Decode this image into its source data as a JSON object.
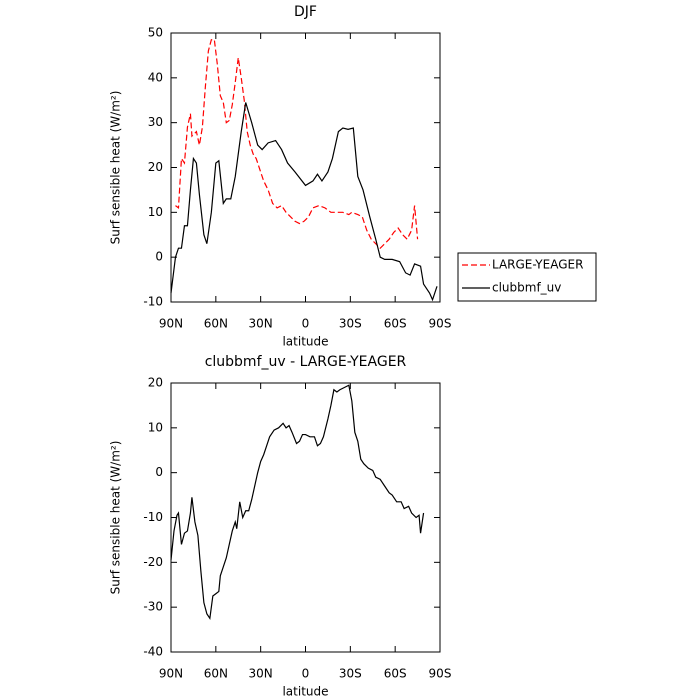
{
  "chart_data": [
    {
      "type": "line",
      "title": "DJF",
      "x_label": "latitude",
      "y_label": "Surf sensible heat (W/m²)",
      "xlim": [
        90,
        -90
      ],
      "xticks": [
        {
          "value": 90,
          "label": "90N"
        },
        {
          "value": 60,
          "label": "60N"
        },
        {
          "value": 30,
          "label": "30N"
        },
        0,
        {
          "value": -30,
          "label": "30S"
        },
        {
          "value": -60,
          "label": "60S"
        },
        {
          "value": -90,
          "label": "90S"
        }
      ],
      "ylim": [
        -10,
        50
      ],
      "yticks": [
        -10,
        0,
        10,
        20,
        30,
        40,
        50
      ],
      "legend": "right",
      "series": [
        {
          "name": "LARGE-YEAGER",
          "color": "#ff0000",
          "dash": true,
          "x": [
            87,
            85,
            83,
            81,
            79,
            77,
            76,
            73,
            71,
            69,
            67,
            65,
            63,
            61,
            59,
            57,
            55,
            53,
            51,
            49,
            47,
            45,
            43,
            41,
            39,
            37,
            35,
            33,
            31,
            28,
            25,
            22,
            19,
            16,
            13,
            10,
            7,
            4,
            1,
            -2,
            -5,
            -9,
            -13,
            -17,
            -21,
            -25,
            -29,
            -31,
            -35,
            -38,
            -41,
            -44,
            -47,
            -50,
            -53,
            -56,
            -59,
            -62,
            -65,
            -68,
            -71,
            -73,
            -75
          ],
          "values": [
            11.5,
            11,
            22,
            21,
            29,
            32,
            27,
            28,
            25,
            29,
            38,
            46,
            48.5,
            48.5,
            43,
            36,
            34.5,
            30,
            30.5,
            34,
            39,
            44.5,
            40,
            35,
            28,
            25,
            23,
            22,
            20,
            17,
            15,
            12,
            11,
            11.5,
            10,
            9,
            8,
            7.5,
            8,
            9,
            11,
            11.5,
            11,
            10,
            10,
            10,
            9.5,
            10,
            9.5,
            9,
            6,
            4,
            3,
            2,
            3,
            4,
            5.5,
            6.5,
            5,
            4,
            6,
            11.5,
            4
          ]
        },
        {
          "name": "clubbmf_uv",
          "color": "#000000",
          "dash": false,
          "x": [
            90,
            87,
            85,
            83,
            81,
            79,
            77,
            75,
            73,
            71,
            68,
            66,
            63,
            60,
            58,
            55,
            53,
            50,
            47,
            43,
            40,
            36,
            32,
            29,
            25,
            20,
            16,
            12,
            7,
            0,
            -5,
            -8,
            -11,
            -15,
            -18,
            -22,
            -25,
            -28.5,
            -32,
            -35,
            -38.5,
            -43,
            -47,
            -50,
            -53,
            -58,
            -63,
            -67,
            -70,
            -73,
            -77,
            -79,
            -83,
            -85,
            -88
          ],
          "values": [
            -8,
            0,
            2,
            2,
            7,
            7,
            15,
            22,
            21,
            14,
            5,
            3,
            10,
            21,
            21.5,
            12,
            13,
            13,
            18,
            28,
            34.5,
            30,
            25,
            24,
            25.5,
            26,
            24,
            21,
            19,
            16,
            17,
            18.5,
            17,
            19,
            22,
            28,
            28.8,
            28.5,
            28.8,
            18,
            15,
            9,
            4,
            0,
            -0.5,
            -0.5,
            -1,
            -3.5,
            -4,
            -1.5,
            -2,
            -6,
            -8,
            -9.5,
            -6.5
          ]
        }
      ]
    },
    {
      "type": "line",
      "title": "clubbmf_uv - LARGE-YEAGER",
      "x_label": "latitude",
      "y_label": "Surf sensible heat (W/m²)",
      "xlim": [
        90,
        -90
      ],
      "xticks": [
        {
          "value": 90,
          "label": "90N"
        },
        {
          "value": 60,
          "label": "60N"
        },
        {
          "value": 30,
          "label": "30N"
        },
        0,
        {
          "value": -30,
          "label": "30S"
        },
        {
          "value": -60,
          "label": "60S"
        },
        {
          "value": -90,
          "label": "90S"
        }
      ],
      "ylim": [
        -40,
        20
      ],
      "yticks": [
        -40,
        -30,
        -20,
        -10,
        0,
        10,
        20
      ],
      "series": [
        {
          "color": "#000000",
          "dash": false,
          "x": [
            90,
            88,
            86,
            85,
            83,
            81,
            79,
            77,
            76,
            74,
            72,
            70,
            68,
            66,
            64,
            62,
            60,
            58,
            57,
            55,
            53,
            51,
            49,
            47,
            46,
            44,
            42,
            40,
            38,
            36,
            34,
            32,
            30,
            28,
            26,
            24,
            21,
            18,
            15,
            13,
            11,
            9,
            6,
            4,
            2,
            0,
            -3,
            -6,
            -8,
            -10,
            -12,
            -15,
            -17,
            -19,
            -21,
            -23,
            -26,
            -29,
            -31,
            -33,
            -35,
            -37,
            -39,
            -42,
            -45,
            -47,
            -50,
            -53,
            -56,
            -58,
            -61,
            -64,
            -66,
            -69,
            -71,
            -74,
            -76,
            -77,
            -79
          ],
          "values": [
            -19.5,
            -13,
            -9.5,
            -9,
            -16,
            -13.5,
            -13,
            -9,
            -5.5,
            -11,
            -14,
            -22,
            -29,
            -31.5,
            -32.5,
            -27.5,
            -27,
            -26.5,
            -23,
            -21,
            -19,
            -16,
            -13,
            -11,
            -12.5,
            -6.5,
            -10,
            -8.5,
            -8.5,
            -6,
            -3,
            0,
            2.5,
            4,
            6,
            8,
            9.5,
            10,
            11,
            10,
            10.5,
            9,
            6.5,
            7,
            8.5,
            8.5,
            8,
            8,
            6,
            6.5,
            8,
            12,
            15,
            18.5,
            18,
            18.5,
            19,
            19.5,
            16,
            9,
            7,
            3,
            2,
            1,
            0.5,
            -1,
            -1.5,
            -3,
            -4.5,
            -5,
            -6.5,
            -6.5,
            -8,
            -7.5,
            -9,
            -10,
            -9.5,
            -13.5,
            -9
          ]
        }
      ]
    }
  ]
}
